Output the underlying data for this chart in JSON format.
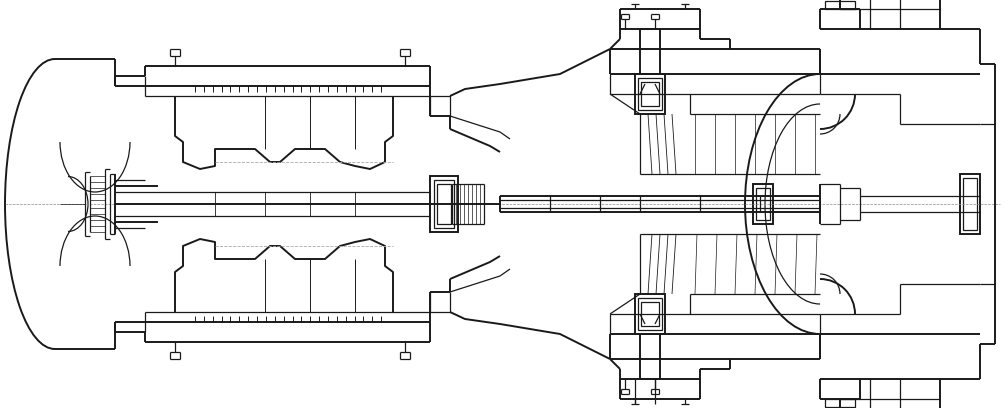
{
  "background_color": "#ffffff",
  "line_color": "#1a1a1a",
  "dashed_color": "#aaaaaa",
  "line_width": 0.9,
  "fig_width": 10.08,
  "fig_height": 4.08,
  "dpi": 100
}
